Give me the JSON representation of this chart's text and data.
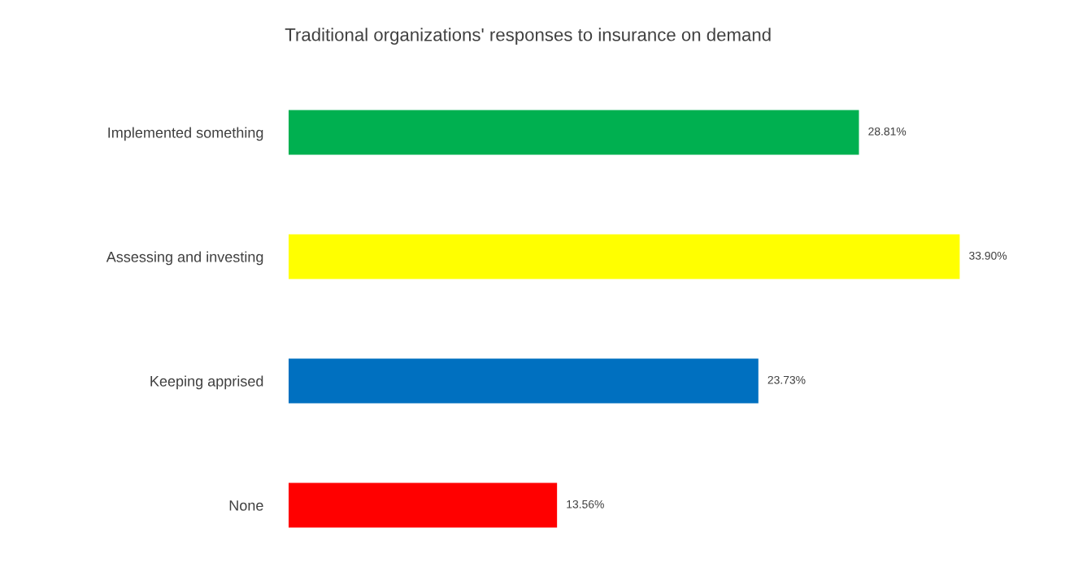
{
  "chart_data": {
    "type": "bar",
    "orientation": "horizontal",
    "title": "Traditional organizations' responses to insurance on demand",
    "categories": [
      "Implemented something",
      "Assessing and investing",
      "Keeping apprised",
      "None"
    ],
    "values": [
      28.81,
      33.9,
      23.73,
      13.56
    ],
    "colors": [
      "#00b050",
      "#ffff00",
      "#0070c0",
      "#ff0000"
    ],
    "value_labels": [
      "28.81%",
      "33.90%",
      "23.73%",
      "13.56%"
    ],
    "tick_labels": "y",
    "grid": false,
    "legend": false
  }
}
